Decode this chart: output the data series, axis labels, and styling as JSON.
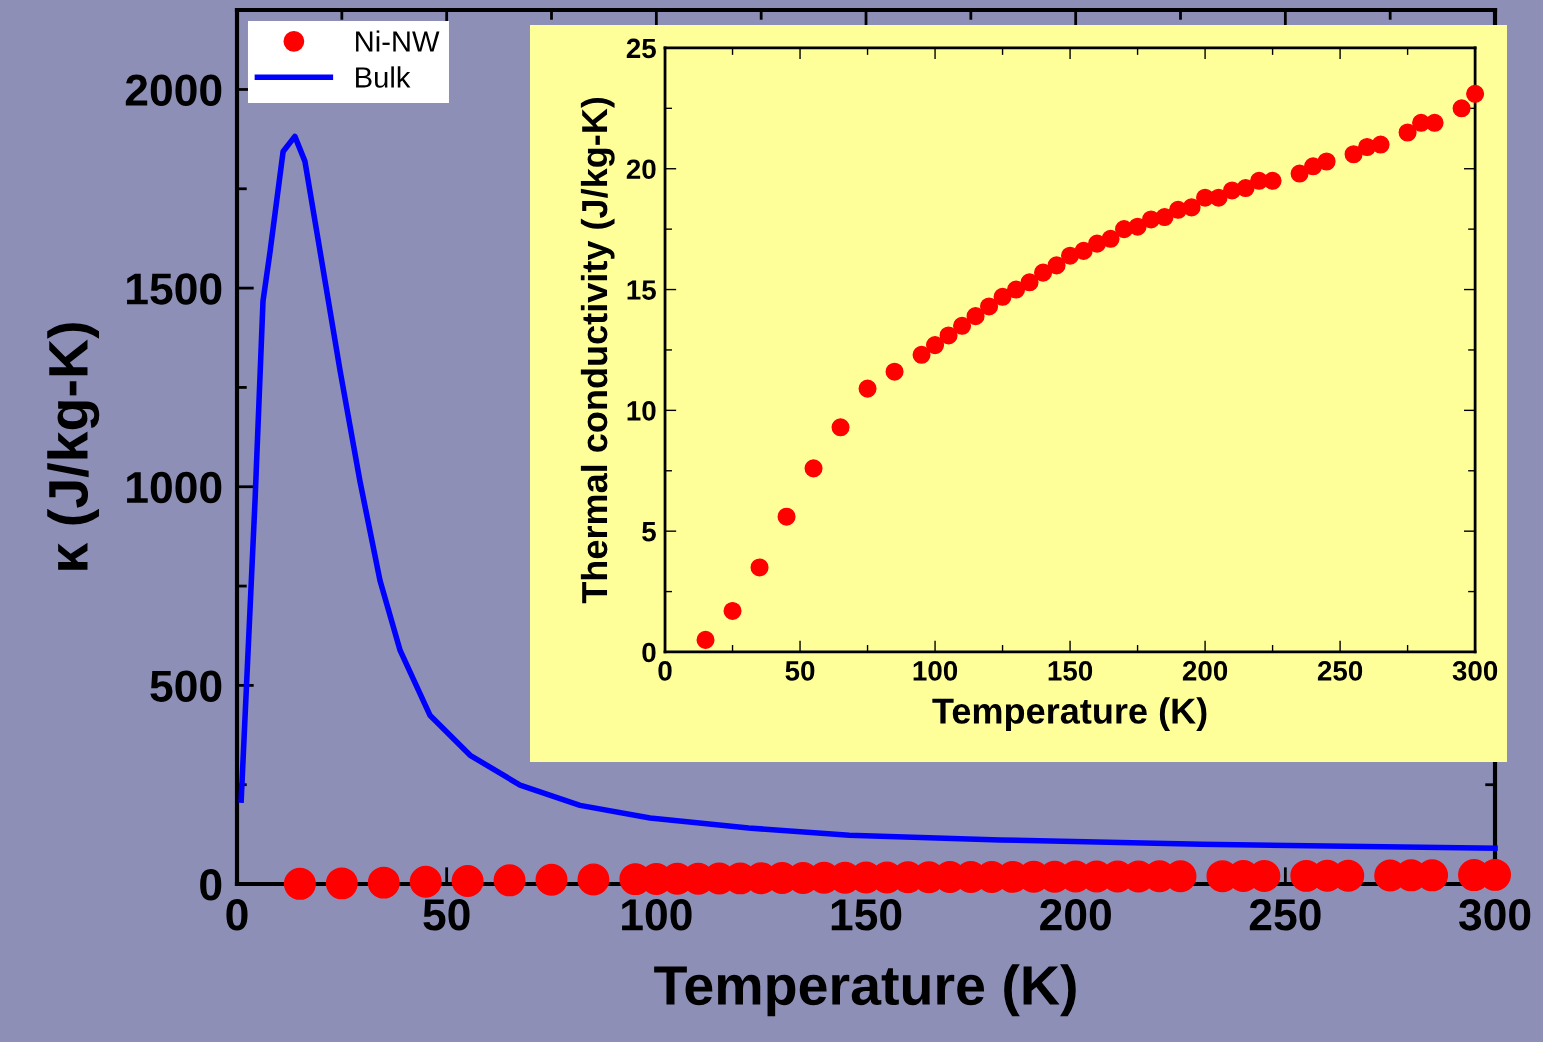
{
  "chart_data": [
    {
      "type": "scatter",
      "xlabel": "Temperature (K)",
      "ylabel": "κ (J/kg-K)",
      "xlim": [
        0,
        300
      ],
      "ylim": [
        0,
        2200
      ],
      "xticks": [
        0,
        50,
        100,
        150,
        200,
        250,
        300
      ],
      "yticks": [
        0,
        500,
        1000,
        1500,
        2000
      ],
      "legend": "top left",
      "grid": false,
      "x": [
        15,
        25,
        35,
        45,
        55,
        65,
        75,
        85,
        95,
        100,
        105,
        110,
        115,
        120,
        125,
        130,
        135,
        140,
        145,
        150,
        155,
        160,
        165,
        170,
        175,
        180,
        185,
        190,
        195,
        200,
        205,
        210,
        215,
        220,
        225,
        235,
        240,
        245,
        255,
        260,
        265,
        275,
        280,
        285,
        295,
        300
      ],
      "series": [
        {
          "name": "Ni-NW",
          "marker": "circle",
          "color": "#ff0000",
          "values": [
            0.5,
            1.7,
            3.5,
            5.6,
            7.6,
            9.3,
            10.9,
            11.6,
            12.3,
            12.7,
            13.1,
            13.5,
            13.9,
            14.3,
            14.7,
            15.0,
            15.3,
            15.7,
            16.0,
            16.4,
            16.6,
            16.9,
            17.1,
            17.5,
            17.6,
            17.9,
            18.0,
            18.3,
            18.4,
            18.8,
            18.8,
            19.1,
            19.2,
            19.5,
            19.5,
            19.8,
            20.1,
            20.3,
            20.6,
            20.9,
            21.0,
            21.5,
            21.9,
            21.9,
            22.5,
            23.1
          ]
        },
        {
          "name": "Bulk",
          "type": "line",
          "line_style": "solid",
          "color": "#0000ff",
          "x": [
            1,
            4.3,
            6.2,
            7.9,
            11,
            13.8,
            16.2,
            19.8,
            24.6,
            29.3,
            34.1,
            38.9,
            46,
            55.6,
            67.5,
            81.8,
            98.5,
            122,
            146,
            182,
            230,
            300
          ],
          "values": [
            211,
            965,
            1467,
            1593,
            1844,
            1882,
            1819,
            1593,
            1291,
            1015,
            764,
            588,
            425,
            324,
            249,
            198,
            166,
            141,
            123,
            111,
            100,
            90
          ]
        }
      ]
    },
    {
      "type": "scatter",
      "xlabel": "Temperature (K)",
      "ylabel": "Thermal conductivity (J/kg-K)",
      "xlim": [
        0,
        300
      ],
      "ylim": [
        0,
        25
      ],
      "xticks": [
        0,
        50,
        100,
        150,
        200,
        250,
        300
      ],
      "yticks": [
        0,
        5,
        10,
        15,
        20,
        25
      ],
      "grid": false,
      "x": [
        15,
        25,
        35,
        45,
        55,
        65,
        75,
        85,
        95,
        100,
        105,
        110,
        115,
        120,
        125,
        130,
        135,
        140,
        145,
        150,
        155,
        160,
        165,
        170,
        175,
        180,
        185,
        190,
        195,
        200,
        205,
        210,
        215,
        220,
        225,
        235,
        240,
        245,
        255,
        260,
        265,
        275,
        280,
        285,
        295,
        300
      ],
      "series": [
        {
          "marker": "circle",
          "color": "#ff0000",
          "values": [
            0.5,
            1.7,
            3.5,
            5.6,
            7.6,
            9.3,
            10.9,
            11.6,
            12.3,
            12.7,
            13.1,
            13.5,
            13.9,
            14.3,
            14.7,
            15.0,
            15.3,
            15.7,
            16.0,
            16.4,
            16.6,
            16.9,
            17.1,
            17.5,
            17.6,
            17.9,
            18.0,
            18.3,
            18.4,
            18.8,
            18.8,
            19.1,
            19.2,
            19.5,
            19.5,
            19.8,
            20.1,
            20.3,
            20.6,
            20.9,
            21.0,
            21.5,
            21.9,
            21.9,
            22.5,
            23.1
          ]
        }
      ]
    }
  ]
}
